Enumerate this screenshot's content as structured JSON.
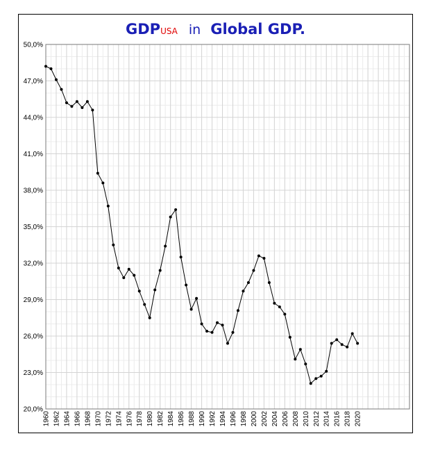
{
  "title": {
    "main": "GDP",
    "sub": "USA",
    "middle": "in",
    "end": "Global GDP."
  },
  "colors": {
    "title": "#1a1fb5",
    "subscript": "#e00000",
    "line": "#000000",
    "grid_major": "#d4d4d4",
    "grid_minor": "#ececec"
  },
  "chart_data": {
    "type": "line",
    "title": "GDP USA in Global GDP.",
    "xlabel": "",
    "ylabel": "",
    "ylim": [
      20,
      50
    ],
    "xlim": [
      1960,
      2030
    ],
    "grid": true,
    "legend": "none",
    "y_ticks": [
      20,
      23,
      26,
      29,
      32,
      35,
      38,
      41,
      44,
      47,
      50
    ],
    "y_tick_labels": [
      "20,0%",
      "23,0%",
      "26,0%",
      "29,0%",
      "32,0%",
      "35,0%",
      "38,0%",
      "41,0%",
      "44,0%",
      "47,0%",
      "50,0%"
    ],
    "x_ticks": [
      1960,
      1962,
      1964,
      1966,
      1968,
      1970,
      1972,
      1974,
      1976,
      1978,
      1980,
      1982,
      1984,
      1986,
      1988,
      1990,
      1992,
      1994,
      1996,
      1998,
      2000,
      2002,
      2004,
      2006,
      2008,
      2010,
      2012,
      2014,
      2016,
      2018,
      2020
    ],
    "x_tick_labels": [
      "1960",
      "1962",
      "1964",
      "1966",
      "1968",
      "1970",
      "1972",
      "1974",
      "1976",
      "1978",
      "1980",
      "1982",
      "1984",
      "1986",
      "1988",
      "1990",
      "1992",
      "1994",
      "1996",
      "1998",
      "2000",
      "2002",
      "2004",
      "2006",
      "2008",
      "2010",
      "2012",
      "2014",
      "2016",
      "2018",
      "2020"
    ],
    "x": [
      1960,
      1961,
      1962,
      1963,
      1964,
      1965,
      1966,
      1967,
      1968,
      1969,
      1970,
      1971,
      1972,
      1973,
      1974,
      1975,
      1976,
      1977,
      1978,
      1979,
      1980,
      1981,
      1982,
      1983,
      1984,
      1985,
      1986,
      1987,
      1988,
      1989,
      1990,
      1991,
      1992,
      1993,
      1994,
      1995,
      1996,
      1997,
      1998,
      1999,
      2000,
      2001,
      2002,
      2003,
      2004,
      2005,
      2006,
      2007,
      2008,
      2009,
      2010,
      2011,
      2012,
      2013,
      2014,
      2015,
      2016,
      2017,
      2018,
      2019,
      2020
    ],
    "y": [
      48.2,
      48.0,
      47.1,
      46.3,
      45.2,
      44.9,
      45.3,
      44.8,
      45.3,
      44.6,
      39.4,
      38.6,
      36.7,
      33.5,
      31.6,
      30.8,
      31.5,
      31.0,
      29.7,
      28.6,
      27.5,
      29.8,
      31.4,
      33.4,
      35.8,
      36.4,
      32.5,
      30.2,
      28.2,
      29.1,
      27.0,
      26.4,
      26.3,
      27.1,
      26.9,
      25.4,
      26.3,
      28.1,
      29.7,
      30.4,
      31.4,
      32.6,
      32.4,
      30.4,
      28.7,
      28.4,
      27.8,
      25.9,
      24.1,
      24.9,
      23.7,
      22.1,
      22.5,
      22.7,
      23.1,
      25.4,
      25.7,
      25.3,
      25.1,
      26.2,
      25.4
    ]
  }
}
